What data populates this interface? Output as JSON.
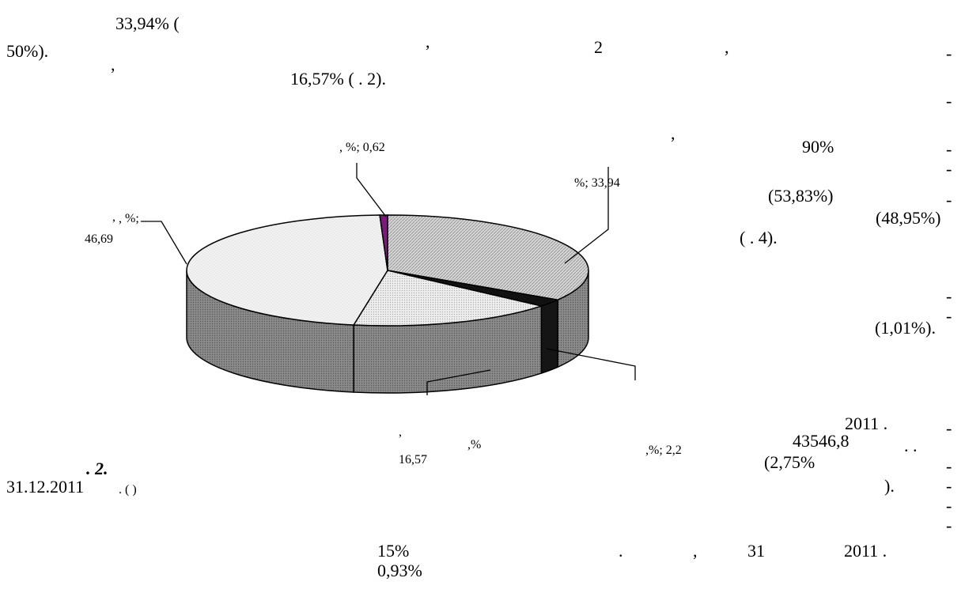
{
  "text_top": {
    "l1_value": "33,94% (",
    "l2_left": "50%).",
    "l2_comma1": ",",
    "l2_num": "2",
    "l2_comma2": ",",
    "l2_dash": "-",
    "l3_comma": ",",
    "l3_text": "16,57% (     . 2).",
    "l4_dash": "-"
  },
  "text_right": {
    "comma": ",",
    "p90": "90%",
    "dash1": "-",
    "dash2": "-",
    "v5383": "(53,83%)",
    "dash3": "-",
    "v4895": "(48,95%)",
    "fig4": "(       . 4).",
    "dash4": "-",
    "dash5": "-",
    "v101": "(1,01%).",
    "year": "2011   .",
    "dash6": "-",
    "amount": "43546,8",
    "dots": ".     .",
    "v275": "(2,75%",
    "dash7": "-",
    "close": ").",
    "dash8": "-",
    "dash9": "-",
    "dash10": "-"
  },
  "chart_labels": {
    "top_slice": ", %; 0,62",
    "right_slice": "%; 33,94",
    "left_slice_a": ",",
    "left_slice_b": ", %;",
    "left_slice_c": "46,69",
    "bottom_a": ",",
    "bottom_b": ",%",
    "bottom_c": "16,57",
    "bottom_right": ",%; 2,2"
  },
  "caption": {
    "fig": ". 2.",
    "date": "31.12.2011",
    "paren": ". (                                     )"
  },
  "text_bottom": {
    "p15": "15%",
    "dot": ".",
    "comma": ",",
    "d31": "31",
    "y2011": "2011   .",
    "p093": "0,93%"
  },
  "chart_data": {
    "type": "pie",
    "style": "3d",
    "slices": [
      {
        "label": "",
        "value": 33.94,
        "color": "#d2d2d2"
      },
      {
        "label": "",
        "value": 2.2,
        "color": "#111111"
      },
      {
        "label": "",
        "value": 16.57,
        "color": "#e6e6e6"
      },
      {
        "label": "",
        "value": 46.69,
        "color": "#f0f0f0"
      },
      {
        "label": "",
        "value": 0.62,
        "color": "#7a1a7a"
      }
    ]
  }
}
